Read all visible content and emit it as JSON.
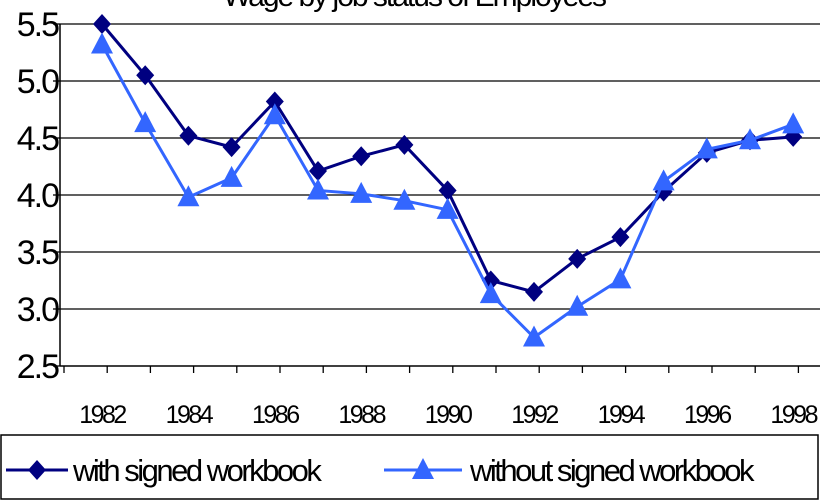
{
  "chart_data": {
    "type": "line",
    "title": "Wage by job status of Employees",
    "xlabel": "",
    "ylabel": "",
    "ylim": [
      2.5,
      5.5
    ],
    "yticks": [
      "2.5",
      "3.0",
      "3.5",
      "4.0",
      "4.5",
      "5.0",
      "5.5"
    ],
    "x": [
      1982,
      1983,
      1984,
      1985,
      1986,
      1987,
      1988,
      1989,
      1990,
      1991,
      1992,
      1993,
      1994,
      1995,
      1996,
      1997,
      1998
    ],
    "xtick_labels": [
      "1982",
      "1984",
      "1986",
      "1988",
      "1990",
      "1992",
      "1994",
      "1996",
      "1998"
    ],
    "series": [
      {
        "name": "with signed workbook",
        "color": "#000080",
        "marker": "diamond",
        "values": [
          5.5,
          5.05,
          4.52,
          4.42,
          4.82,
          4.21,
          4.34,
          4.44,
          4.04,
          3.25,
          3.15,
          3.44,
          3.63,
          4.03,
          4.37,
          4.48,
          4.51
        ]
      },
      {
        "name": "without signed workbook",
        "color": "#3366ff",
        "marker": "triangle",
        "values": [
          5.32,
          4.63,
          3.98,
          4.15,
          4.7,
          4.04,
          4.01,
          3.95,
          3.87,
          3.13,
          2.75,
          3.02,
          3.26,
          4.12,
          4.4,
          4.48,
          4.62
        ]
      }
    ],
    "grid": true,
    "legend": "bottom"
  }
}
